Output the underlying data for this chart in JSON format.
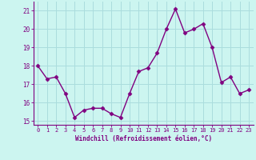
{
  "x": [
    0,
    1,
    2,
    3,
    4,
    5,
    6,
    7,
    8,
    9,
    10,
    11,
    12,
    13,
    14,
    15,
    16,
    17,
    18,
    19,
    20,
    21,
    22,
    23
  ],
  "y": [
    18.0,
    17.3,
    17.4,
    16.5,
    15.2,
    15.6,
    15.7,
    15.7,
    15.4,
    15.2,
    16.5,
    17.7,
    17.9,
    18.7,
    20.0,
    21.1,
    19.8,
    20.0,
    20.3,
    19.0,
    17.1,
    17.4,
    16.5,
    16.7
  ],
  "line_color": "#800080",
  "marker_color": "#800080",
  "bg_color": "#ccf5f0",
  "grid_color": "#aadddd",
  "xlabel": "Windchill (Refroidissement éolien,°C)",
  "xlabel_color": "#800080",
  "tick_color": "#800080",
  "spine_color": "#800080",
  "ylim": [
    14.8,
    21.5
  ],
  "xlim": [
    -0.5,
    23.5
  ],
  "yticks": [
    15,
    16,
    17,
    18,
    19,
    20,
    21
  ],
  "xticks": [
    0,
    1,
    2,
    3,
    4,
    5,
    6,
    7,
    8,
    9,
    10,
    11,
    12,
    13,
    14,
    15,
    16,
    17,
    18,
    19,
    20,
    21,
    22,
    23
  ],
  "xtick_labels": [
    "0",
    "1",
    "2",
    "3",
    "4",
    "5",
    "6",
    "7",
    "8",
    "9",
    "10",
    "11",
    "12",
    "13",
    "14",
    "15",
    "16",
    "17",
    "18",
    "19",
    "20",
    "21",
    "22",
    "23"
  ],
  "linewidth": 1.0,
  "markersize": 2.5
}
